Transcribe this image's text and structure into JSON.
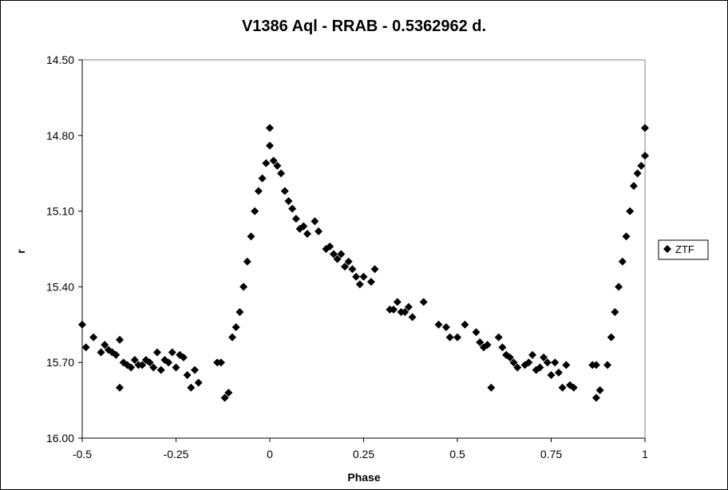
{
  "chart_data": {
    "type": "scatter",
    "title": "V1386 Aql - RRAB - 0.5362962 d.",
    "xlabel": "Phase",
    "ylabel": "r",
    "xlim": [
      -0.5,
      1.0
    ],
    "ylim": [
      14.5,
      16.0
    ],
    "y_inverted": true,
    "x_ticks": [
      "-0.5",
      "-0.25",
      "0",
      "0.25",
      "0.5",
      "0.75",
      "1"
    ],
    "y_ticks": [
      "14.50",
      "14.80",
      "15.10",
      "15.40",
      "15.70",
      "16.00"
    ],
    "grid": false,
    "legend_position": "right",
    "marker": "diamond",
    "marker_color": "#000000",
    "series": [
      {
        "name": "ZTF",
        "points": [
          [
            -0.5,
            15.55
          ],
          [
            -0.49,
            15.64
          ],
          [
            -0.47,
            15.6
          ],
          [
            -0.45,
            15.66
          ],
          [
            -0.44,
            15.63
          ],
          [
            -0.43,
            15.65
          ],
          [
            -0.42,
            15.66
          ],
          [
            -0.41,
            15.67
          ],
          [
            -0.4,
            15.61
          ],
          [
            -0.4,
            15.8
          ],
          [
            -0.39,
            15.7
          ],
          [
            -0.38,
            15.71
          ],
          [
            -0.37,
            15.72
          ],
          [
            -0.36,
            15.69
          ],
          [
            -0.35,
            15.71
          ],
          [
            -0.34,
            15.71
          ],
          [
            -0.33,
            15.69
          ],
          [
            -0.32,
            15.7
          ],
          [
            -0.31,
            15.72
          ],
          [
            -0.3,
            15.66
          ],
          [
            -0.29,
            15.73
          ],
          [
            -0.28,
            15.69
          ],
          [
            -0.27,
            15.7
          ],
          [
            -0.26,
            15.66
          ],
          [
            -0.25,
            15.72
          ],
          [
            -0.24,
            15.67
          ],
          [
            -0.23,
            15.68
          ],
          [
            -0.22,
            15.75
          ],
          [
            -0.21,
            15.8
          ],
          [
            -0.2,
            15.73
          ],
          [
            -0.19,
            15.78
          ],
          [
            -0.14,
            15.7
          ],
          [
            -0.13,
            15.7
          ],
          [
            -0.12,
            15.84
          ],
          [
            -0.11,
            15.82
          ],
          [
            -0.1,
            15.6
          ],
          [
            -0.09,
            15.56
          ],
          [
            -0.08,
            15.5
          ],
          [
            -0.07,
            15.4
          ],
          [
            -0.06,
            15.3
          ],
          [
            -0.05,
            15.2
          ],
          [
            -0.04,
            15.1
          ],
          [
            -0.03,
            15.02
          ],
          [
            -0.02,
            14.97
          ],
          [
            -0.01,
            14.91
          ],
          [
            0.0,
            14.84
          ],
          [
            0.0,
            14.77
          ],
          [
            0.01,
            14.9
          ],
          [
            0.02,
            14.92
          ],
          [
            0.03,
            14.95
          ],
          [
            0.04,
            15.02
          ],
          [
            0.05,
            15.06
          ],
          [
            0.06,
            15.09
          ],
          [
            0.07,
            15.13
          ],
          [
            0.08,
            15.17
          ],
          [
            0.09,
            15.16
          ],
          [
            0.1,
            15.19
          ],
          [
            0.12,
            15.14
          ],
          [
            0.13,
            15.18
          ],
          [
            0.15,
            15.25
          ],
          [
            0.16,
            15.24
          ],
          [
            0.17,
            15.27
          ],
          [
            0.18,
            15.29
          ],
          [
            0.19,
            15.27
          ],
          [
            0.2,
            15.32
          ],
          [
            0.21,
            15.3
          ],
          [
            0.22,
            15.33
          ],
          [
            0.23,
            15.36
          ],
          [
            0.24,
            15.39
          ],
          [
            0.25,
            15.36
          ],
          [
            0.27,
            15.38
          ],
          [
            0.28,
            15.33
          ],
          [
            0.32,
            15.49
          ],
          [
            0.33,
            15.49
          ],
          [
            0.34,
            15.46
          ],
          [
            0.35,
            15.5
          ],
          [
            0.36,
            15.5
          ],
          [
            0.37,
            15.48
          ],
          [
            0.38,
            15.52
          ],
          [
            0.41,
            15.46
          ],
          [
            0.45,
            15.55
          ],
          [
            0.47,
            15.56
          ],
          [
            0.48,
            15.6
          ],
          [
            0.5,
            15.6
          ],
          [
            0.52,
            15.55
          ],
          [
            0.55,
            15.58
          ],
          [
            0.56,
            15.62
          ],
          [
            0.57,
            15.64
          ],
          [
            0.58,
            15.63
          ],
          [
            0.59,
            15.8
          ],
          [
            0.61,
            15.6
          ],
          [
            0.62,
            15.64
          ],
          [
            0.63,
            15.67
          ],
          [
            0.64,
            15.68
          ],
          [
            0.65,
            15.7
          ],
          [
            0.66,
            15.72
          ],
          [
            0.68,
            15.71
          ],
          [
            0.69,
            15.7
          ],
          [
            0.7,
            15.67
          ],
          [
            0.71,
            15.73
          ],
          [
            0.72,
            15.72
          ],
          [
            0.73,
            15.68
          ],
          [
            0.74,
            15.7
          ],
          [
            0.75,
            15.75
          ],
          [
            0.76,
            15.7
          ],
          [
            0.77,
            15.74
          ],
          [
            0.78,
            15.8
          ],
          [
            0.79,
            15.71
          ],
          [
            0.8,
            15.79
          ],
          [
            0.81,
            15.8
          ],
          [
            0.86,
            15.71
          ],
          [
            0.87,
            15.71
          ],
          [
            0.87,
            15.84
          ],
          [
            0.88,
            15.81
          ],
          [
            0.9,
            15.71
          ],
          [
            0.91,
            15.6
          ],
          [
            0.92,
            15.5
          ],
          [
            0.93,
            15.4
          ],
          [
            0.94,
            15.3
          ],
          [
            0.95,
            15.2
          ],
          [
            0.96,
            15.1
          ],
          [
            0.97,
            15.0
          ],
          [
            0.98,
            14.95
          ],
          [
            0.99,
            14.92
          ],
          [
            1.0,
            14.88
          ],
          [
            1.0,
            14.77
          ]
        ]
      }
    ]
  }
}
